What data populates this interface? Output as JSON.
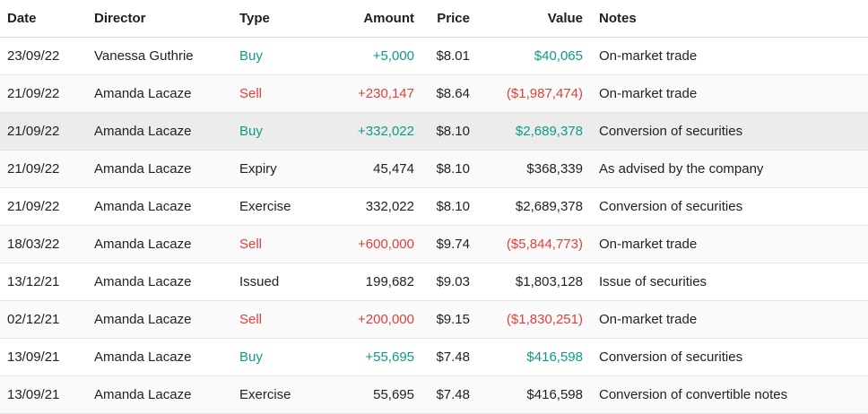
{
  "colors": {
    "positive": "#0a9b86",
    "negative": "#e0403a",
    "neutral": "#222222"
  },
  "headers": {
    "date": "Date",
    "director": "Director",
    "type": "Type",
    "amount": "Amount",
    "price": "Price",
    "value": "Value",
    "notes": "Notes"
  },
  "rows": [
    {
      "date": "23/09/22",
      "director": "Vanessa Guthrie",
      "type": "Buy",
      "amount": "+5,000",
      "price": "$8.01",
      "value": "$40,065",
      "notes": "On-market trade",
      "tone": "buy",
      "highlight": false
    },
    {
      "date": "21/09/22",
      "director": "Amanda Lacaze",
      "type": "Sell",
      "amount": "+230,147",
      "price": "$8.64",
      "value": "($1,987,474)",
      "notes": "On-market trade",
      "tone": "sell",
      "highlight": false
    },
    {
      "date": "21/09/22",
      "director": "Amanda Lacaze",
      "type": "Buy",
      "amount": "+332,022",
      "price": "$8.10",
      "value": "$2,689,378",
      "notes": "Conversion of securities",
      "tone": "buy",
      "highlight": true
    },
    {
      "date": "21/09/22",
      "director": "Amanda Lacaze",
      "type": "Expiry",
      "amount": "45,474",
      "price": "$8.10",
      "value": "$368,339",
      "notes": "As advised by the company",
      "tone": "neutral",
      "highlight": false
    },
    {
      "date": "21/09/22",
      "director": "Amanda Lacaze",
      "type": "Exercise",
      "amount": "332,022",
      "price": "$8.10",
      "value": "$2,689,378",
      "notes": "Conversion of securities",
      "tone": "neutral",
      "highlight": false
    },
    {
      "date": "18/03/22",
      "director": "Amanda Lacaze",
      "type": "Sell",
      "amount": "+600,000",
      "price": "$9.74",
      "value": "($5,844,773)",
      "notes": "On-market trade",
      "tone": "sell",
      "highlight": false
    },
    {
      "date": "13/12/21",
      "director": "Amanda Lacaze",
      "type": "Issued",
      "amount": "199,682",
      "price": "$9.03",
      "value": "$1,803,128",
      "notes": "Issue of securities",
      "tone": "neutral",
      "highlight": false
    },
    {
      "date": "02/12/21",
      "director": "Amanda Lacaze",
      "type": "Sell",
      "amount": "+200,000",
      "price": "$9.15",
      "value": "($1,830,251)",
      "notes": "On-market trade",
      "tone": "sell",
      "highlight": false
    },
    {
      "date": "13/09/21",
      "director": "Amanda Lacaze",
      "type": "Buy",
      "amount": "+55,695",
      "price": "$7.48",
      "value": "$416,598",
      "notes": "Conversion of securities",
      "tone": "buy",
      "highlight": false
    },
    {
      "date": "13/09/21",
      "director": "Amanda Lacaze",
      "type": "Exercise",
      "amount": "55,695",
      "price": "$7.48",
      "value": "$416,598",
      "notes": "Conversion of convertible notes",
      "tone": "neutral",
      "highlight": false
    }
  ]
}
